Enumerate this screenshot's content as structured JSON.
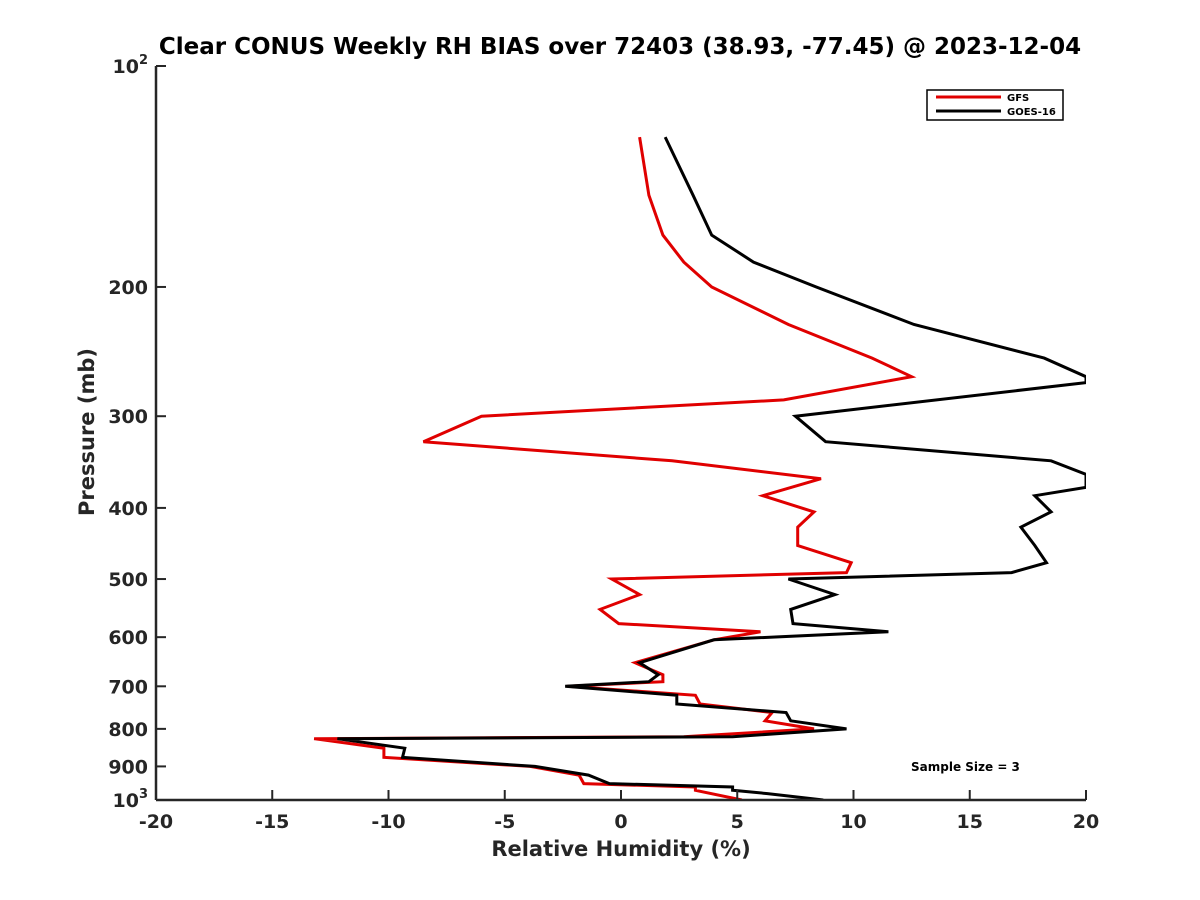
{
  "chart_data": {
    "type": "line",
    "title": "Clear CONUS Weekly RH BIAS over 72403 (38.93, -77.45) @ 2023-12-04",
    "xlabel": "Relative Humidity (%)",
    "ylabel": "Pressure (mb)",
    "xlim": [
      -20,
      20
    ],
    "ylim": [
      100,
      1000
    ],
    "y_scale": "log",
    "y_reversed": true,
    "grid": false,
    "legend_position": "top-right",
    "x_ticks": [
      -20,
      -15,
      -10,
      -5,
      0,
      5,
      10,
      15,
      20
    ],
    "x_tick_labels": [
      "-20",
      "-15",
      "-10",
      "-5",
      "0",
      "5",
      "10",
      "15",
      "20"
    ],
    "y_ticks": [
      100,
      200,
      300,
      400,
      500,
      600,
      700,
      800,
      900,
      1000
    ],
    "y_tick_labels": [
      {
        "base": "10",
        "sup": "2"
      },
      {
        "base": "200",
        "sup": ""
      },
      {
        "base": "300",
        "sup": ""
      },
      {
        "base": "400",
        "sup": ""
      },
      {
        "base": "500",
        "sup": ""
      },
      {
        "base": "600",
        "sup": ""
      },
      {
        "base": "700",
        "sup": ""
      },
      {
        "base": "800",
        "sup": ""
      },
      {
        "base": "900",
        "sup": ""
      },
      {
        "base": "10",
        "sup": "3"
      }
    ],
    "annotation": "Sample Size = 3",
    "series": [
      {
        "name": "GFS",
        "color": "#e00000",
        "points": [
          [
            0.8,
            125
          ],
          [
            1.2,
            150
          ],
          [
            1.8,
            170
          ],
          [
            2.7,
            185
          ],
          [
            3.9,
            200
          ],
          [
            7.2,
            225
          ],
          [
            10.8,
            250
          ],
          [
            12.5,
            265
          ],
          [
            7.0,
            285
          ],
          [
            -6.0,
            300
          ],
          [
            -8.5,
            325
          ],
          [
            2.2,
            345
          ],
          [
            8.6,
            365
          ],
          [
            6.1,
            385
          ],
          [
            8.3,
            405
          ],
          [
            7.6,
            425
          ],
          [
            7.6,
            450
          ],
          [
            9.9,
            475
          ],
          [
            9.7,
            490
          ],
          [
            -0.4,
            500
          ],
          [
            0.8,
            525
          ],
          [
            -0.9,
            550
          ],
          [
            -0.1,
            575
          ],
          [
            6.0,
            590
          ],
          [
            4.0,
            605
          ],
          [
            0.6,
            650
          ],
          [
            1.8,
            675
          ],
          [
            1.8,
            690
          ],
          [
            -2.3,
            700
          ],
          [
            3.2,
            720
          ],
          [
            3.4,
            740
          ],
          [
            6.5,
            760
          ],
          [
            6.2,
            780
          ],
          [
            8.3,
            800
          ],
          [
            2.7,
            820
          ],
          [
            -13.2,
            825
          ],
          [
            -10.2,
            850
          ],
          [
            -10.2,
            875
          ],
          [
            -3.9,
            900
          ],
          [
            -1.8,
            925
          ],
          [
            -1.6,
            950
          ],
          [
            3.2,
            960
          ],
          [
            3.2,
            970
          ],
          [
            5.2,
            1000
          ]
        ]
      },
      {
        "name": "GOES-16",
        "color": "#000000",
        "points": [
          [
            1.9,
            125
          ],
          [
            3.1,
            150
          ],
          [
            3.9,
            170
          ],
          [
            5.7,
            185
          ],
          [
            8.4,
            200
          ],
          [
            12.6,
            225
          ],
          [
            18.2,
            250
          ],
          [
            20.0,
            265
          ],
          [
            20.0,
            270
          ],
          [
            7.5,
            300
          ],
          [
            8.8,
            325
          ],
          [
            18.5,
            345
          ],
          [
            20.0,
            360
          ],
          [
            20.0,
            375
          ],
          [
            17.8,
            385
          ],
          [
            18.5,
            405
          ],
          [
            17.2,
            425
          ],
          [
            17.8,
            450
          ],
          [
            18.3,
            475
          ],
          [
            16.8,
            490
          ],
          [
            7.2,
            500
          ],
          [
            9.2,
            525
          ],
          [
            7.3,
            550
          ],
          [
            7.4,
            575
          ],
          [
            11.5,
            590
          ],
          [
            4.0,
            605
          ],
          [
            0.8,
            650
          ],
          [
            1.6,
            675
          ],
          [
            1.2,
            690
          ],
          [
            -2.4,
            700
          ],
          [
            2.4,
            720
          ],
          [
            2.4,
            740
          ],
          [
            7.1,
            760
          ],
          [
            7.3,
            780
          ],
          [
            9.7,
            800
          ],
          [
            4.8,
            820
          ],
          [
            -12.2,
            825
          ],
          [
            -9.3,
            850
          ],
          [
            -9.4,
            875
          ],
          [
            -3.7,
            900
          ],
          [
            -1.4,
            925
          ],
          [
            -0.5,
            950
          ],
          [
            4.8,
            960
          ],
          [
            4.8,
            970
          ],
          [
            6.3,
            980
          ],
          [
            8.7,
            1000
          ]
        ]
      }
    ]
  }
}
